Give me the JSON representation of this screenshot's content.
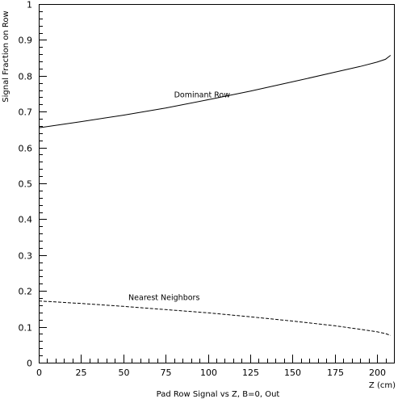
{
  "chart_data": {
    "type": "line",
    "title": "",
    "xlabel": "Pad Row Signal vs Z, B=0, Out",
    "xunit_label": "Z (cm)",
    "ylabel": "Signal Fraction on Row",
    "xlim": [
      0,
      210
    ],
    "ylim": [
      0,
      1
    ],
    "x_ticks": [
      0,
      25,
      50,
      75,
      100,
      125,
      150,
      175,
      200
    ],
    "y_ticks": [
      0,
      0.1,
      0.2,
      0.3,
      0.4,
      0.5,
      0.6,
      0.7,
      0.8,
      0.9,
      1
    ],
    "x_tick_labels": [
      "0",
      "25",
      "50",
      "75",
      "100",
      "125",
      "150",
      "175",
      "200"
    ],
    "y_tick_labels": [
      "0",
      "0.1",
      "0.2",
      "0.3",
      "0.4",
      "0.5",
      "0.6",
      "0.7",
      "0.8",
      "0.9",
      "1"
    ],
    "grid": false,
    "series": [
      {
        "name": "Dominant Row",
        "style": "solid",
        "x": [
          0,
          25,
          50,
          75,
          100,
          125,
          150,
          175,
          190,
          200,
          205,
          208
        ],
        "y": [
          0.655,
          0.672,
          0.69,
          0.71,
          0.733,
          0.757,
          0.783,
          0.81,
          0.826,
          0.838,
          0.846,
          0.857
        ]
      },
      {
        "name": "Nearest Neighbors",
        "style": "dashed",
        "x": [
          0,
          25,
          50,
          75,
          100,
          125,
          150,
          175,
          190,
          200,
          205,
          208
        ],
        "y": [
          0.172,
          0.165,
          0.157,
          0.148,
          0.139,
          0.128,
          0.116,
          0.103,
          0.093,
          0.086,
          0.081,
          0.076
        ]
      }
    ],
    "annotations": [
      {
        "text": "Dominant Row",
        "x": 80,
        "y": 0.74
      },
      {
        "text": "Nearest Neighbors",
        "x": 53,
        "y": 0.175
      }
    ]
  }
}
